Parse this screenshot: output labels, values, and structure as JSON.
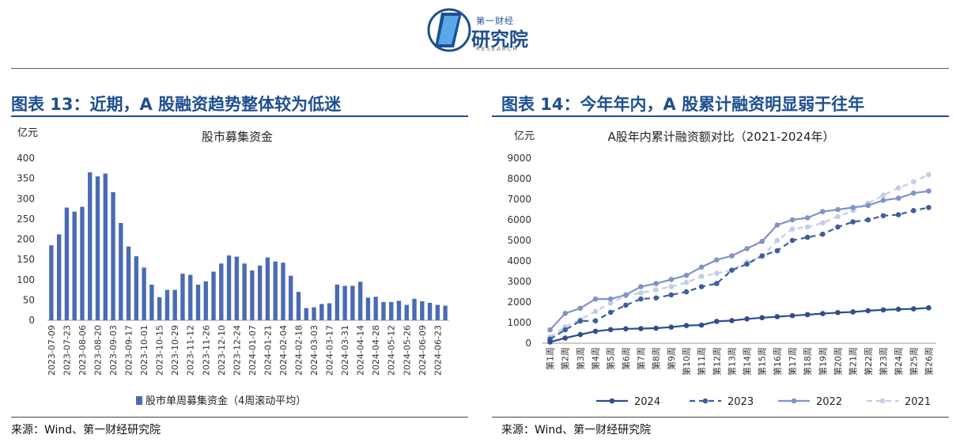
{
  "header": {
    "logo_top": "第一财经",
    "logo_main": "研究院",
    "logo_sub": "RESEARCH"
  },
  "colors": {
    "brand": "#1d4f91",
    "s2024": "#2e4e8c",
    "s2023": "#3d5f9e",
    "s2022": "#7f93c9",
    "s2021": "#c3cde6",
    "bar": "#4a6bb3"
  },
  "left_panel": {
    "title": "图表 13：近期，A 股融资趋势整体较为低迷",
    "source": "来源：Wind、第一财经研究院"
  },
  "right_panel": {
    "title": "图表 14：今年年内，A 股累计融资明显弱于往年",
    "source": "来源：Wind、第一财经研究院"
  },
  "chart_data": [
    {
      "type": "bar",
      "title": "股市募集资金",
      "ylabel": "亿元",
      "ylim": [
        0,
        400
      ],
      "yticks": [
        0,
        50,
        100,
        150,
        200,
        250,
        300,
        350,
        400
      ],
      "xticklabels": [
        "2023-07-09",
        "2023-07-23",
        "2023-08-06",
        "2023-08-20",
        "2023-09-03",
        "2023-09-17",
        "2023-10-01",
        "2023-10-15",
        "2023-10-29",
        "2023-11-12",
        "2023-11-26",
        "2023-12-10",
        "2023-12-24",
        "2024-01-07",
        "2024-01-21",
        "2024-02-04",
        "2024-02-18",
        "2024-03-03",
        "2024-03-17",
        "2024-03-31",
        "2024-04-14",
        "2024-04-28",
        "2024-05-12",
        "2024-05-26",
        "2024-06-09",
        "2024-06-23"
      ],
      "series": [
        {
          "name": "股市单周募集资金（4周滚动平均）",
          "values": [
            185,
            212,
            278,
            268,
            280,
            365,
            355,
            362,
            316,
            240,
            182,
            158,
            130,
            88,
            57,
            75,
            75,
            115,
            112,
            88,
            96,
            120,
            140,
            160,
            157,
            140,
            123,
            135,
            155,
            145,
            142,
            110,
            70,
            30,
            32,
            40,
            42,
            88,
            85,
            85,
            95,
            56,
            58,
            45,
            45,
            48,
            38,
            53,
            47,
            43,
            38,
            36
          ]
        }
      ],
      "legend": "bottom"
    },
    {
      "type": "line",
      "title": "A股年内累计融资额对比（2021-2024年）",
      "ylabel": "亿元",
      "ylim": [
        0,
        9000
      ],
      "yticks": [
        0,
        1000,
        2000,
        3000,
        4000,
        5000,
        6000,
        7000,
        8000,
        9000
      ],
      "categories": [
        "第1周",
        "第2周",
        "第3周",
        "第4周",
        "第5周",
        "第6周",
        "第7周",
        "第8周",
        "第9周",
        "第10周",
        "第11周",
        "第12周",
        "第13周",
        "第14周",
        "第15周",
        "第16周",
        "第17周",
        "第18周",
        "第19周",
        "第20周",
        "第21周",
        "第22周",
        "第23周",
        "第24周",
        "第25周",
        "第26周"
      ],
      "series": [
        {
          "name": "2024",
          "style": "solid",
          "values": [
            60,
            250,
            420,
            580,
            660,
            700,
            710,
            730,
            780,
            860,
            880,
            1060,
            1100,
            1180,
            1240,
            1290,
            1340,
            1390,
            1440,
            1490,
            1520,
            1580,
            1620,
            1650,
            1670,
            1720
          ]
        },
        {
          "name": "2023",
          "style": "dashed",
          "values": [
            200,
            650,
            1080,
            1090,
            1500,
            1850,
            2150,
            2200,
            2350,
            2500,
            2750,
            2900,
            3550,
            3850,
            4250,
            4500,
            5000,
            5150,
            5300,
            5650,
            5900,
            6000,
            6200,
            6250,
            6450,
            6600
          ]
        },
        {
          "name": "2022",
          "style": "solid",
          "values": [
            650,
            1450,
            1700,
            2150,
            2150,
            2350,
            2750,
            2900,
            3100,
            3300,
            3700,
            4050,
            4250,
            4600,
            4950,
            5750,
            6000,
            6100,
            6400,
            6500,
            6600,
            6700,
            6950,
            7050,
            7300,
            7400
          ]
        },
        {
          "name": "2021",
          "style": "dashed",
          "values": [
            300,
            800,
            1150,
            1550,
            1950,
            2300,
            2450,
            2600,
            2750,
            2950,
            3250,
            3400,
            3550,
            3950,
            4200,
            5000,
            5550,
            5650,
            5850,
            6150,
            6450,
            6800,
            7200,
            7550,
            7850,
            8200
          ]
        }
      ],
      "legend": "bottom"
    }
  ]
}
